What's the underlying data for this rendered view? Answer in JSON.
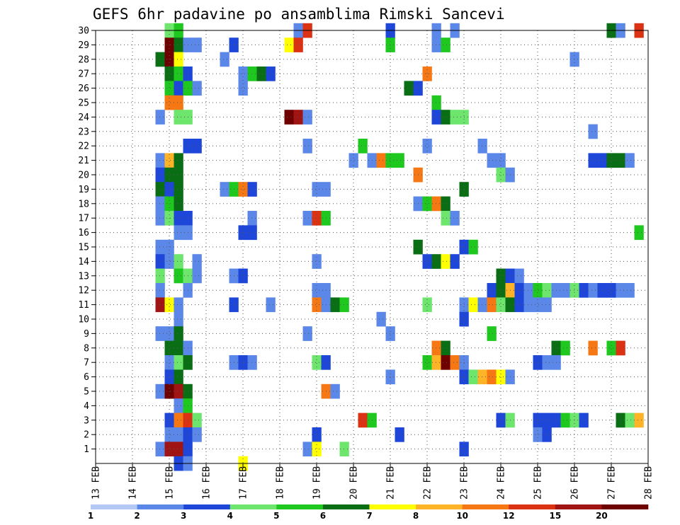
{
  "chart_data": {
    "type": "heatmap",
    "title": "GEFS 6hr padavine po ansamblima Rimski Sancevi",
    "x_tick_labels": [
      "13 FEB",
      "14 FEB",
      "15 FEB",
      "16 FEB",
      "17 FEB",
      "18 FEB",
      "19 FEB",
      "20 FEB",
      "21 FEB",
      "22 FEB",
      "23 FEB",
      "24 FEB",
      "25 FEB",
      "26 FEB",
      "27 FEB",
      "28 FEB"
    ],
    "y_tick_labels": [
      "1",
      "2",
      "3",
      "4",
      "5",
      "6",
      "7",
      "8",
      "9",
      "10",
      "11",
      "12",
      "13",
      "14",
      "15",
      "16",
      "17",
      "18",
      "19",
      "20",
      "21",
      "22",
      "23",
      "24",
      "25",
      "26",
      "27",
      "28",
      "29",
      "30"
    ],
    "x_unit": "6-hour step from 13 FEB 00Z",
    "x_range": [
      0,
      60
    ],
    "y_range": [
      0,
      30
    ],
    "grid": true,
    "colorbar": {
      "labels": [
        "1",
        "2",
        "3",
        "4",
        "5",
        "6",
        "7",
        "8",
        "10",
        "12",
        "15",
        "20"
      ],
      "colors": [
        "#b4c8f5",
        "#5a87e8",
        "#1e46d8",
        "#6ee66e",
        "#1ec81e",
        "#0a6e14",
        "#ffff00",
        "#ffb428",
        "#f57814",
        "#dc3214",
        "#a01414",
        "#6e0000"
      ]
    },
    "cells": [
      [
        8,
        30,
        3
      ],
      [
        9,
        30,
        4
      ],
      [
        22,
        30,
        1
      ],
      [
        23,
        30,
        9
      ],
      [
        32,
        30,
        2
      ],
      [
        37,
        30,
        1
      ],
      [
        39,
        30,
        1
      ],
      [
        56,
        30,
        5
      ],
      [
        57,
        30,
        1
      ],
      [
        59,
        30,
        9
      ],
      [
        8,
        29,
        11
      ],
      [
        9,
        29,
        5
      ],
      [
        10,
        29,
        1
      ],
      [
        11,
        29,
        1
      ],
      [
        15,
        29,
        2
      ],
      [
        21,
        29,
        6
      ],
      [
        22,
        29,
        9
      ],
      [
        32,
        29,
        4
      ],
      [
        37,
        29,
        1
      ],
      [
        38,
        29,
        4
      ],
      [
        7,
        28,
        5
      ],
      [
        8,
        28,
        11
      ],
      [
        9,
        28,
        6
      ],
      [
        14,
        28,
        1
      ],
      [
        52,
        28,
        1
      ],
      [
        8,
        27,
        5
      ],
      [
        9,
        27,
        4
      ],
      [
        10,
        27,
        2
      ],
      [
        16,
        27,
        1
      ],
      [
        17,
        27,
        4
      ],
      [
        18,
        27,
        5
      ],
      [
        19,
        27,
        2
      ],
      [
        36,
        27,
        8
      ],
      [
        8,
        26,
        4
      ],
      [
        9,
        26,
        2
      ],
      [
        10,
        26,
        4
      ],
      [
        11,
        26,
        1
      ],
      [
        16,
        26,
        1
      ],
      [
        34,
        26,
        5
      ],
      [
        35,
        26,
        2
      ],
      [
        8,
        25,
        8
      ],
      [
        9,
        25,
        8
      ],
      [
        37,
        25,
        4
      ],
      [
        7,
        24,
        1
      ],
      [
        9,
        24,
        3
      ],
      [
        10,
        24,
        3
      ],
      [
        21,
        24,
        11
      ],
      [
        22,
        24,
        10
      ],
      [
        23,
        24,
        1
      ],
      [
        37,
        24,
        2
      ],
      [
        38,
        24,
        5
      ],
      [
        39,
        24,
        3
      ],
      [
        40,
        24,
        3
      ],
      [
        54,
        23,
        1
      ],
      [
        10,
        22,
        2
      ],
      [
        11,
        22,
        2
      ],
      [
        23,
        22,
        1
      ],
      [
        29,
        22,
        4
      ],
      [
        36,
        22,
        1
      ],
      [
        42,
        22,
        1
      ],
      [
        7,
        21,
        1
      ],
      [
        8,
        21,
        7
      ],
      [
        9,
        21,
        5
      ],
      [
        28,
        21,
        1
      ],
      [
        30,
        21,
        1
      ],
      [
        31,
        21,
        8
      ],
      [
        32,
        21,
        4
      ],
      [
        33,
        21,
        4
      ],
      [
        43,
        21,
        1
      ],
      [
        44,
        21,
        1
      ],
      [
        54,
        21,
        2
      ],
      [
        55,
        21,
        2
      ],
      [
        56,
        21,
        5
      ],
      [
        57,
        21,
        5
      ],
      [
        58,
        21,
        1
      ],
      [
        7,
        20,
        2
      ],
      [
        8,
        20,
        5
      ],
      [
        9,
        20,
        5
      ],
      [
        35,
        20,
        8
      ],
      [
        44,
        20,
        3
      ],
      [
        45,
        20,
        1
      ],
      [
        7,
        19,
        5
      ],
      [
        8,
        19,
        2
      ],
      [
        9,
        19,
        5
      ],
      [
        14,
        19,
        1
      ],
      [
        15,
        19,
        4
      ],
      [
        16,
        19,
        8
      ],
      [
        17,
        19,
        2
      ],
      [
        24,
        19,
        1
      ],
      [
        25,
        19,
        1
      ],
      [
        40,
        19,
        5
      ],
      [
        7,
        18,
        1
      ],
      [
        8,
        18,
        4
      ],
      [
        9,
        18,
        5
      ],
      [
        35,
        18,
        1
      ],
      [
        36,
        18,
        4
      ],
      [
        37,
        18,
        8
      ],
      [
        38,
        18,
        5
      ],
      [
        7,
        17,
        1
      ],
      [
        8,
        17,
        3
      ],
      [
        9,
        17,
        2
      ],
      [
        10,
        17,
        2
      ],
      [
        17,
        17,
        1
      ],
      [
        23,
        17,
        1
      ],
      [
        24,
        17,
        9
      ],
      [
        25,
        17,
        4
      ],
      [
        38,
        17,
        3
      ],
      [
        39,
        17,
        1
      ],
      [
        9,
        16,
        1
      ],
      [
        10,
        16,
        1
      ],
      [
        16,
        16,
        2
      ],
      [
        17,
        16,
        2
      ],
      [
        59,
        16,
        4
      ],
      [
        7,
        15,
        1
      ],
      [
        8,
        15,
        1
      ],
      [
        35,
        15,
        5
      ],
      [
        40,
        15,
        2
      ],
      [
        41,
        15,
        4
      ],
      [
        7,
        14,
        2
      ],
      [
        8,
        14,
        1
      ],
      [
        9,
        14,
        3
      ],
      [
        11,
        14,
        1
      ],
      [
        24,
        14,
        1
      ],
      [
        36,
        14,
        2
      ],
      [
        37,
        14,
        5
      ],
      [
        38,
        14,
        6
      ],
      [
        39,
        14,
        2
      ],
      [
        7,
        13,
        3
      ],
      [
        9,
        13,
        4
      ],
      [
        10,
        13,
        3
      ],
      [
        11,
        13,
        1
      ],
      [
        15,
        13,
        1
      ],
      [
        16,
        13,
        2
      ],
      [
        44,
        13,
        5
      ],
      [
        45,
        13,
        2
      ],
      [
        46,
        13,
        1
      ],
      [
        7,
        12,
        1
      ],
      [
        10,
        12,
        1
      ],
      [
        24,
        12,
        1
      ],
      [
        25,
        12,
        1
      ],
      [
        43,
        12,
        2
      ],
      [
        44,
        12,
        5
      ],
      [
        45,
        12,
        7
      ],
      [
        46,
        12,
        2
      ],
      [
        47,
        12,
        1
      ],
      [
        48,
        12,
        4
      ],
      [
        49,
        12,
        3
      ],
      [
        50,
        12,
        1
      ],
      [
        51,
        12,
        1
      ],
      [
        52,
        12,
        3
      ],
      [
        53,
        12,
        2
      ],
      [
        54,
        12,
        1
      ],
      [
        55,
        12,
        2
      ],
      [
        56,
        12,
        2
      ],
      [
        57,
        12,
        1
      ],
      [
        58,
        12,
        1
      ],
      [
        7,
        11,
        10
      ],
      [
        8,
        11,
        6
      ],
      [
        9,
        11,
        1
      ],
      [
        15,
        11,
        2
      ],
      [
        19,
        11,
        1
      ],
      [
        24,
        11,
        8
      ],
      [
        25,
        11,
        1
      ],
      [
        26,
        11,
        5
      ],
      [
        27,
        11,
        4
      ],
      [
        36,
        11,
        3
      ],
      [
        40,
        11,
        1
      ],
      [
        41,
        11,
        6
      ],
      [
        42,
        11,
        1
      ],
      [
        43,
        11,
        8
      ],
      [
        44,
        11,
        3
      ],
      [
        45,
        11,
        5
      ],
      [
        46,
        11,
        2
      ],
      [
        47,
        11,
        1
      ],
      [
        48,
        11,
        1
      ],
      [
        49,
        11,
        1
      ],
      [
        9,
        10,
        1
      ],
      [
        31,
        10,
        1
      ],
      [
        40,
        10,
        2
      ],
      [
        7,
        9,
        1
      ],
      [
        8,
        9,
        1
      ],
      [
        9,
        9,
        5
      ],
      [
        23,
        9,
        1
      ],
      [
        32,
        9,
        1
      ],
      [
        43,
        9,
        4
      ],
      [
        8,
        8,
        5
      ],
      [
        9,
        8,
        5
      ],
      [
        10,
        8,
        1
      ],
      [
        37,
        8,
        8
      ],
      [
        38,
        8,
        5
      ],
      [
        50,
        8,
        5
      ],
      [
        51,
        8,
        4
      ],
      [
        54,
        8,
        8
      ],
      [
        56,
        8,
        4
      ],
      [
        57,
        8,
        9
      ],
      [
        8,
        7,
        1
      ],
      [
        9,
        7,
        3
      ],
      [
        10,
        7,
        5
      ],
      [
        15,
        7,
        1
      ],
      [
        16,
        7,
        2
      ],
      [
        17,
        7,
        1
      ],
      [
        24,
        7,
        3
      ],
      [
        25,
        7,
        2
      ],
      [
        36,
        7,
        4
      ],
      [
        37,
        7,
        7
      ],
      [
        38,
        7,
        11
      ],
      [
        39,
        7,
        8
      ],
      [
        40,
        7,
        1
      ],
      [
        48,
        7,
        2
      ],
      [
        49,
        7,
        1
      ],
      [
        50,
        7,
        1
      ],
      [
        8,
        6,
        2
      ],
      [
        9,
        6,
        5
      ],
      [
        32,
        6,
        1
      ],
      [
        40,
        6,
        2
      ],
      [
        41,
        6,
        3
      ],
      [
        42,
        6,
        7
      ],
      [
        43,
        6,
        8
      ],
      [
        44,
        6,
        6
      ],
      [
        45,
        6,
        1
      ],
      [
        7,
        5,
        1
      ],
      [
        8,
        5,
        11
      ],
      [
        9,
        5,
        10
      ],
      [
        10,
        5,
        5
      ],
      [
        25,
        5,
        8
      ],
      [
        26,
        5,
        1
      ],
      [
        9,
        4,
        1
      ],
      [
        10,
        4,
        4
      ],
      [
        8,
        3,
        2
      ],
      [
        9,
        3,
        8
      ],
      [
        10,
        3,
        9
      ],
      [
        11,
        3,
        3
      ],
      [
        29,
        3,
        9
      ],
      [
        30,
        3,
        4
      ],
      [
        44,
        3,
        2
      ],
      [
        45,
        3,
        3
      ],
      [
        48,
        3,
        2
      ],
      [
        49,
        3,
        2
      ],
      [
        50,
        3,
        2
      ],
      [
        51,
        3,
        4
      ],
      [
        52,
        3,
        3
      ],
      [
        53,
        3,
        2
      ],
      [
        57,
        3,
        5
      ],
      [
        58,
        3,
        3
      ],
      [
        59,
        3,
        7
      ],
      [
        8,
        2,
        1
      ],
      [
        9,
        2,
        1
      ],
      [
        10,
        2,
        2
      ],
      [
        11,
        2,
        1
      ],
      [
        24,
        2,
        2
      ],
      [
        33,
        2,
        2
      ],
      [
        48,
        2,
        1
      ],
      [
        49,
        2,
        2
      ],
      [
        7,
        1,
        1
      ],
      [
        8,
        1,
        10
      ],
      [
        9,
        1,
        10
      ],
      [
        10,
        1,
        2
      ],
      [
        23,
        1,
        1
      ],
      [
        24,
        1,
        6
      ],
      [
        27,
        1,
        3
      ],
      [
        40,
        1,
        2
      ],
      [
        9,
        0,
        2
      ],
      [
        10,
        0,
        1
      ],
      [
        16,
        0,
        6
      ]
    ]
  }
}
